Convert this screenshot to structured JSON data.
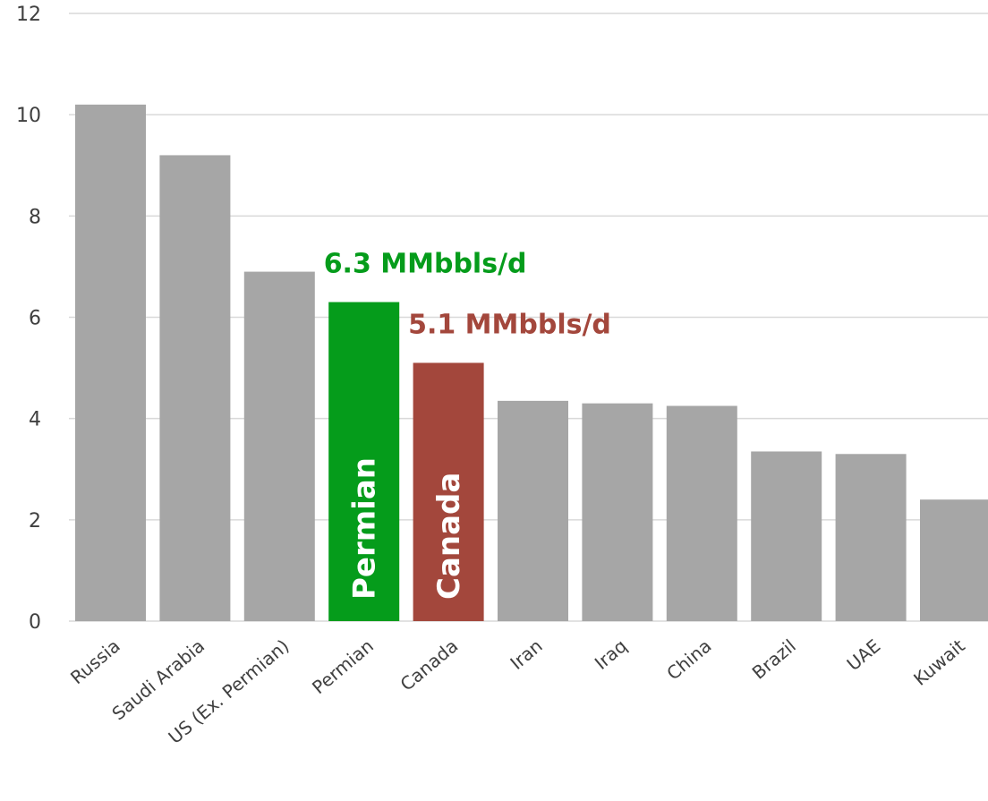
{
  "chart_data": {
    "type": "bar",
    "categories": [
      "Russia",
      "Saudi Arabia",
      "US (Ex. Permian)",
      "Permian",
      "Canada",
      "Iran",
      "Iraq",
      "China",
      "Brazil",
      "UAE",
      "Kuwait"
    ],
    "values": [
      10.2,
      9.2,
      6.9,
      6.3,
      5.1,
      4.35,
      4.3,
      4.25,
      3.35,
      3.3,
      2.4
    ],
    "ylim": [
      0,
      12
    ],
    "yticks": [
      0,
      2,
      4,
      6,
      8,
      10,
      12
    ],
    "grid": true,
    "legend": "none",
    "colors": {
      "default": "#a6a6a6",
      "Permian": "#059c1b",
      "Canada": "#a3473c"
    },
    "in_bar_labels": {
      "Permian": "Permian",
      "Canada": "Canada"
    },
    "annotations": [
      {
        "category": "Permian",
        "text": "6.3 MMbbls/d",
        "color": "#059c1b"
      },
      {
        "category": "Canada",
        "text": "5.1 MMbbls/d",
        "color": "#a3473c"
      }
    ]
  }
}
